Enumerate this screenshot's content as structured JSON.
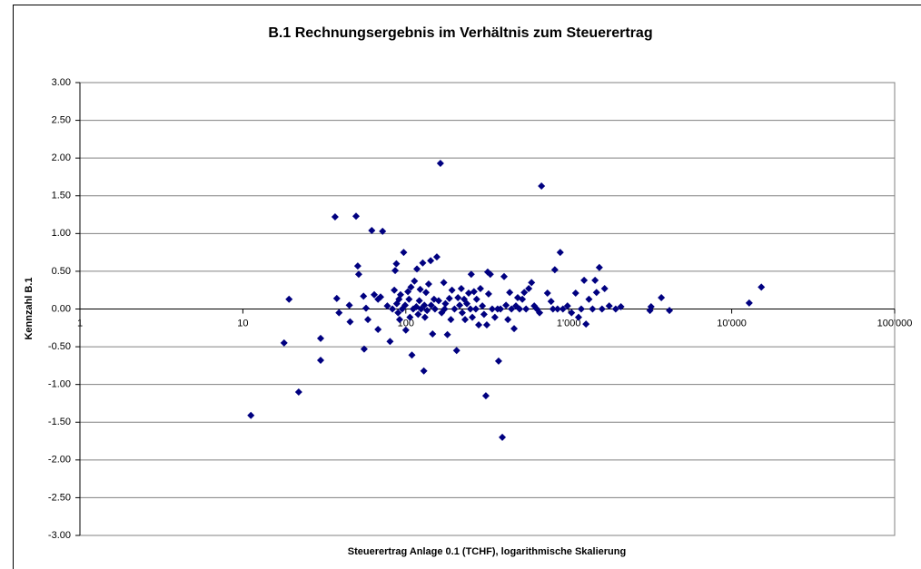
{
  "chart_data": {
    "type": "scatter",
    "title": "B.1 Rechnungsergebnis im Verhältnis zum Steuerertrag",
    "x_label": "Steuerertrag Anlage 0.1 (TCHF), logarithmische Skalierung",
    "y_label": "Kennzahl B.1",
    "xscale": "log",
    "grid": true,
    "xlim": [
      1,
      100000
    ],
    "xticks": [
      1,
      10,
      100,
      {
        "value": 1000,
        "label": "1'000"
      },
      {
        "value": 10000,
        "label": "10'000"
      },
      {
        "value": 100000,
        "label": "100'000"
      }
    ],
    "ylim": [
      -3,
      3
    ],
    "yticks": [
      {
        "value": 3,
        "label": "3.00"
      },
      {
        "value": 2.5,
        "label": "2.50"
      },
      {
        "value": 2,
        "label": "2.00"
      },
      {
        "value": 1.5,
        "label": "1.50"
      },
      {
        "value": 1,
        "label": "1.00"
      },
      {
        "value": 0.5,
        "label": "0.50"
      },
      {
        "value": 0,
        "label": "0.00"
      },
      {
        "value": -0.5,
        "label": "-0.50"
      },
      {
        "value": -1,
        "label": "-1.00"
      },
      {
        "value": -1.5,
        "label": "-1.50"
      },
      {
        "value": -2,
        "label": "-2.00"
      },
      {
        "value": -2.5,
        "label": "-2.50"
      },
      {
        "value": -3,
        "label": "-3.00"
      }
    ],
    "series": [
      {
        "color": "#000080",
        "x": [
          11.2,
          17.9,
          19.2,
          22,
          30,
          30,
          36.8,
          37.7,
          38.9,
          45,
          45.5,
          49.5,
          50.7,
          51.4,
          55,
          55.5,
          57,
          58.5,
          61.8,
          64,
          67.5,
          67.5,
          70,
          72,
          77,
          80,
          82.8,
          85,
          86,
          87.5,
          88,
          89.6,
          90.8,
          91.6,
          92.8,
          95,
          97,
          99,
          100,
          103,
          104.6,
          106,
          107.6,
          109,
          111,
          113,
          116,
          117,
          119,
          121,
          122.5,
          124,
          127,
          129,
          130,
          131,
          133,
          135,
          138,
          142,
          143,
          146,
          149,
          151,
          155,
          159,
          163,
          166,
          171,
          173,
          175,
          180,
          185,
          189,
          192,
          199,
          205,
          209,
          214,
          219,
          222,
          228,
          231,
          237,
          243,
          249,
          252,
          256,
          262,
          269,
          272,
          280,
          287,
          295,
          302,
          310,
          314,
          318,
          322,
          330,
          339,
          352,
          366,
          371,
          381,
          391,
          401,
          412,
          423,
          434,
          445,
          462,
          474,
          486,
          499,
          519,
          533,
          547,
          568,
          591,
          614,
          637,
          662,
          680,
          740,
          779,
          800,
          821,
          853,
          886,
          921,
          982,
          1040,
          1102,
          1148,
          1193,
          1242,
          1276,
          1330,
          1400,
          1450,
          1480,
          1540,
          1600,
          1660,
          1770,
          1940,
          2090,
          3150,
          3200,
          3700,
          4150,
          12800,
          15200
        ],
        "values": [
          -1.41,
          -0.45,
          0.13,
          -1.1,
          -0.68,
          -0.39,
          1.22,
          0.14,
          -0.05,
          0.05,
          -0.17,
          1.23,
          0.57,
          0.46,
          0.17,
          -0.53,
          0.01,
          -0.14,
          1.04,
          0.19,
          -0.27,
          0.13,
          0.16,
          1.03,
          0.04,
          -0.43,
          0,
          0.25,
          0.51,
          0.6,
          0.07,
          -0.05,
          0.13,
          -0.14,
          0.19,
          0,
          0.75,
          0.05,
          -0.28,
          0.23,
          0.13,
          -0.11,
          0.29,
          -0.61,
          0,
          0.37,
          0.03,
          0.53,
          -0.07,
          0.11,
          0.26,
          0,
          0.61,
          -0.82,
          0.05,
          -0.11,
          0.22,
          -0.02,
          0.33,
          0.64,
          0.05,
          -0.33,
          0.13,
          0,
          0.69,
          0.11,
          1.93,
          -0.05,
          0.35,
          0,
          0.07,
          -0.34,
          0.14,
          -0.14,
          0.25,
          0,
          -0.55,
          0.15,
          0.05,
          0.27,
          -0.05,
          0.13,
          -0.14,
          0.07,
          0.21,
          0,
          0.46,
          -0.11,
          0.23,
          0,
          0.13,
          -0.21,
          0.27,
          0.04,
          -0.07,
          -1.15,
          -0.21,
          0.49,
          0.2,
          0.46,
          0,
          -0.11,
          0,
          -0.69,
          0,
          -1.7,
          0.43,
          0.05,
          -0.14,
          0.22,
          0,
          -0.26,
          0.04,
          0.15,
          0,
          0.13,
          0.22,
          0,
          0.27,
          0.35,
          0.04,
          0,
          -0.05,
          1.63,
          0.21,
          0.1,
          0,
          0.52,
          0,
          0.75,
          0,
          0.04,
          -0.05,
          0.21,
          -0.11,
          0,
          0.38,
          -0.2,
          0.13,
          0,
          0.38,
          0.22,
          0.55,
          0,
          0.27,
          0.04,
          0,
          0.03,
          -0.02,
          0.03,
          0.15,
          -0.02,
          0.08,
          0.29
        ]
      }
    ]
  }
}
